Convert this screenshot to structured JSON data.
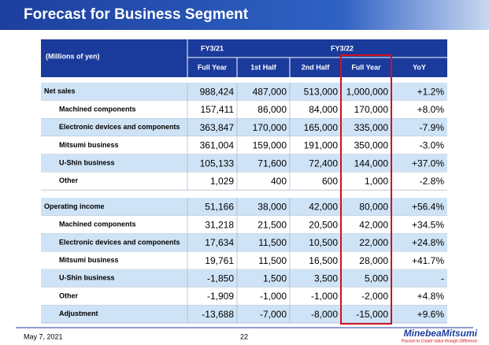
{
  "header": {
    "title": "Forecast for Business Segment"
  },
  "table": {
    "unit_label": "(Millions of yen)",
    "header_groups": [
      "FY3/21",
      "FY3/22"
    ],
    "columns": [
      "Full Year",
      "1st Half",
      "2nd Half",
      "Full Year",
      "YoY"
    ],
    "sections": [
      {
        "rows": [
          {
            "label": "Net sales",
            "cells": [
              "988,424",
              "487,000",
              "513,000",
              "1,000,000",
              "+1.2%"
            ]
          },
          {
            "label": "Machined components",
            "cells": [
              "157,411",
              "86,000",
              "84,000",
              "170,000",
              "+8.0%"
            ]
          },
          {
            "label": "Electronic devices and components",
            "cells": [
              "363,847",
              "170,000",
              "165,000",
              "335,000",
              "-7.9%"
            ]
          },
          {
            "label": "Mitsumi business",
            "cells": [
              "361,004",
              "159,000",
              "191,000",
              "350,000",
              "-3.0%"
            ]
          },
          {
            "label": "U-Shin business",
            "cells": [
              "105,133",
              "71,600",
              "72,400",
              "144,000",
              "+37.0%"
            ]
          },
          {
            "label": "Other",
            "cells": [
              "1,029",
              "400",
              "600",
              "1,000",
              "-2.8%"
            ]
          }
        ]
      },
      {
        "rows": [
          {
            "label": "Operating income",
            "cells": [
              "51,166",
              "38,000",
              "42,000",
              "80,000",
              "+56.4%"
            ]
          },
          {
            "label": "Machined components",
            "cells": [
              "31,218",
              "21,500",
              "20,500",
              "42,000",
              "+34.5%"
            ]
          },
          {
            "label": "Electronic devices and components",
            "cells": [
              "17,634",
              "11,500",
              "10,500",
              "22,000",
              "+24.8%"
            ]
          },
          {
            "label": "Mitsumi business",
            "cells": [
              "19,761",
              "11,500",
              "16,500",
              "28,000",
              "+41.7%"
            ]
          },
          {
            "label": "U-Shin business",
            "cells": [
              "-1,850",
              "1,500",
              "3,500",
              "5,000",
              "-"
            ]
          },
          {
            "label": "Other",
            "cells": [
              "-1,909",
              "-1,000",
              "-1,000",
              "-2,000",
              "+4.8%"
            ]
          },
          {
            "label": "Adjustment",
            "cells": [
              "-13,688",
              "-7,000",
              "-8,000",
              "-15,000",
              "+9.6%"
            ]
          }
        ]
      }
    ]
  },
  "footer": {
    "date": "May 7, 2021",
    "page": "22",
    "logo": "MinebeaMitsumi",
    "tagline": "Passion to Create Value through Difference"
  }
}
